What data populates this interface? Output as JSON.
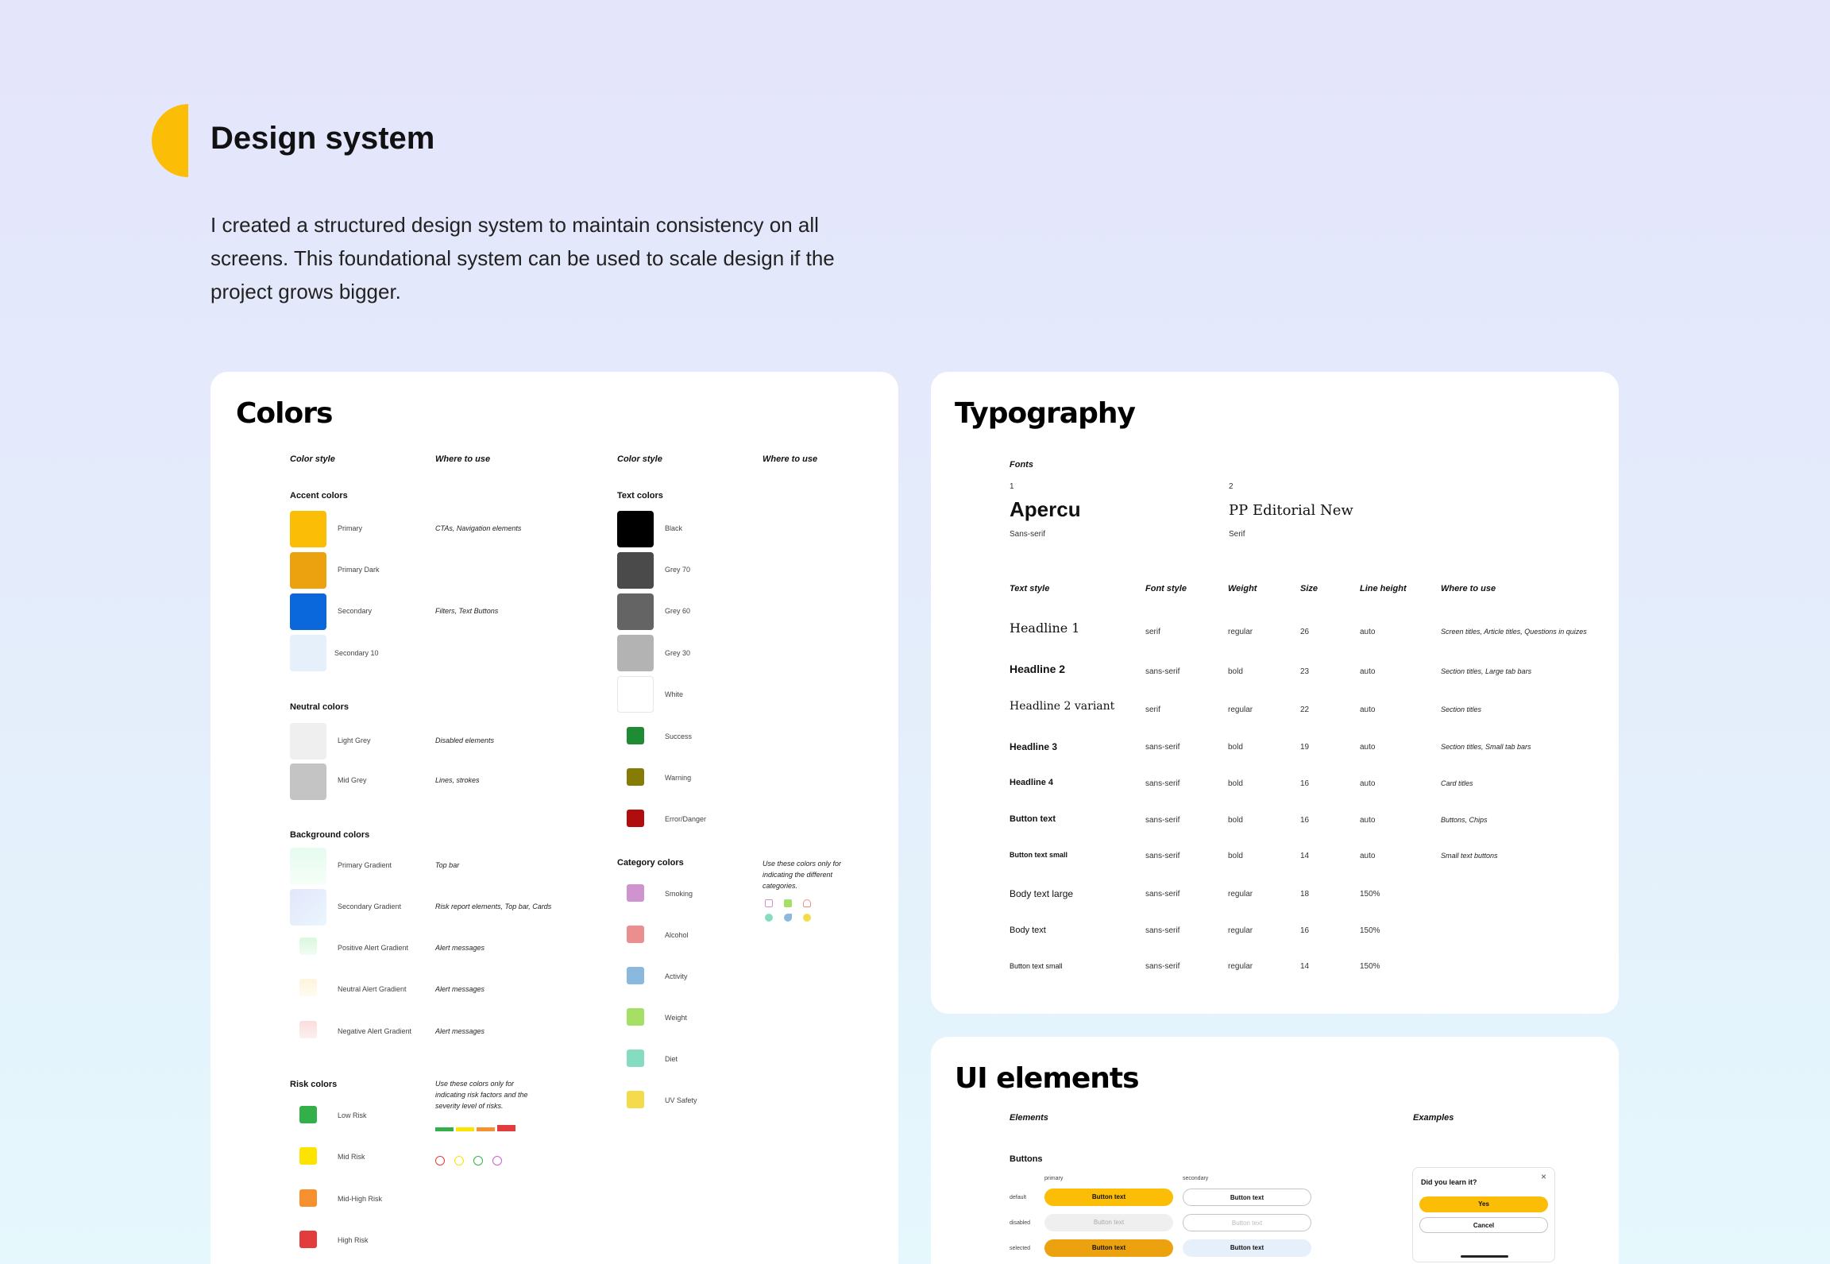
{
  "page": {
    "title": "Design system",
    "intro": "I created a structured design system to maintain consistency on all screens. This foundational system can be used to scale design if the project grows bigger.",
    "accent_color": "#fbbd06"
  },
  "colors": {
    "title": "Colors",
    "headers": {
      "color_style": "Color style",
      "where_to_use": "Where to use"
    },
    "accent": {
      "title": "Accent colors",
      "items": [
        {
          "name": "Primary",
          "hex": "#fbbd06",
          "use": "CTAs, Navigation elements"
        },
        {
          "name": "Primary Dark",
          "hex": "#eca20e",
          "use": ""
        },
        {
          "name": "Secondary",
          "hex": "#0a68dc",
          "use": "Filters, Text Buttons"
        },
        {
          "name": "Secondary 10",
          "hex": "#e6f0fb",
          "use": ""
        }
      ]
    },
    "neutral": {
      "title": "Neutral colors",
      "items": [
        {
          "name": "Light Grey",
          "hex": "#efefef",
          "use": "Disabled elements"
        },
        {
          "name": "Mid Grey",
          "hex": "#c4c4c4",
          "use": "Lines, strokes"
        }
      ]
    },
    "background": {
      "title": "Background colors",
      "items": [
        {
          "name": "Primary Gradient",
          "hex": "#e6fbef",
          "hex2": "#f5fff8",
          "use": "Top bar"
        },
        {
          "name": "Secondary Gradient",
          "hex": "#e3e6fb",
          "hex2": "#eaf6fd",
          "use": "Risk report elements, Top bar, Cards"
        },
        {
          "name": "Positive Alert Gradient",
          "hex": "#d9f7de",
          "hex2": "#f2fcf3",
          "use": "Alert messages"
        },
        {
          "name": "Neutral Alert Gradient",
          "hex": "#fdf5dc",
          "hex2": "#fffbf0",
          "use": "Alert messages"
        },
        {
          "name": "Negative Alert Gradient",
          "hex": "#fbdcdc",
          "hex2": "#fdf0f0",
          "use": "Alert messages"
        }
      ]
    },
    "risk": {
      "title": "Risk colors",
      "note": "Use these colors only for indicating risk factors and the severity level of risks.",
      "items": [
        {
          "name": "Low Risk",
          "hex": "#34b04b"
        },
        {
          "name": "Mid Risk",
          "hex": "#fde300"
        },
        {
          "name": "Mid-High Risk",
          "hex": "#f7902f"
        },
        {
          "name": "High Risk",
          "hex": "#e33c3c"
        }
      ]
    },
    "text": {
      "title": "Text colors",
      "items": [
        {
          "name": "Black",
          "hex": "#000000"
        },
        {
          "name": "Grey 70",
          "hex": "#4a4a4a"
        },
        {
          "name": "Grey 60",
          "hex": "#646464"
        },
        {
          "name": "Grey 30",
          "hex": "#b3b3b3"
        },
        {
          "name": "White",
          "hex": "#ffffff"
        },
        {
          "name": "Success",
          "hex": "#1e8b35"
        },
        {
          "name": "Warning",
          "hex": "#867b05"
        },
        {
          "name": "Error/Danger",
          "hex": "#b00e0e"
        }
      ]
    },
    "category": {
      "title": "Category colors",
      "note": "Use these colors only for indicating the different categories.",
      "items": [
        {
          "name": "Smoking",
          "hex": "#cf93cf"
        },
        {
          "name": "Alcohol",
          "hex": "#ed8e8e"
        },
        {
          "name": "Activity",
          "hex": "#8bb9de"
        },
        {
          "name": "Weight",
          "hex": "#a6df65"
        },
        {
          "name": "Diet",
          "hex": "#86dcc0"
        },
        {
          "name": "UV Safety",
          "hex": "#f3db4b"
        }
      ]
    }
  },
  "typography": {
    "title": "Typography",
    "fonts_label": "Fonts",
    "fonts": [
      {
        "number": "1",
        "name": "Apercu",
        "type": "Sans-serif"
      },
      {
        "number": "2",
        "name": "PP Editorial New",
        "type": "Serif"
      }
    ],
    "headers": [
      "Text style",
      "Font style",
      "Weight",
      "Size",
      "Line height",
      "Where to use"
    ],
    "rows": [
      {
        "style": "Headline 1",
        "font": "serif",
        "weight": "regular",
        "size": "26",
        "line": "auto",
        "use": "Screen titles, Article titles, Questions in quizes"
      },
      {
        "style": "Headline 2",
        "font": "sans-serif",
        "weight": "bold",
        "size": "23",
        "line": "auto",
        "use": "Section titles, Large tab bars"
      },
      {
        "style": "Headline 2 variant",
        "font": "serif",
        "weight": "regular",
        "size": "22",
        "line": "auto",
        "use": "Section titles"
      },
      {
        "style": "Headline 3",
        "font": "sans-serif",
        "weight": "bold",
        "size": "19",
        "line": "auto",
        "use": "Section titles, Small tab bars"
      },
      {
        "style": "Headline 4",
        "font": "sans-serif",
        "weight": "bold",
        "size": "16",
        "line": "auto",
        "use": "Card titles"
      },
      {
        "style": "Button text",
        "font": "sans-serif",
        "weight": "bold",
        "size": "16",
        "line": "auto",
        "use": "Buttons, Chips"
      },
      {
        "style": "Button text small",
        "font": "sans-serif",
        "weight": "bold",
        "size": "14",
        "line": "auto",
        "use": "Small text buttons"
      },
      {
        "style": "Body text large",
        "font": "sans-serif",
        "weight": "regular",
        "size": "18",
        "line": "150%",
        "use": ""
      },
      {
        "style": "Body text",
        "font": "sans-serif",
        "weight": "regular",
        "size": "16",
        "line": "150%",
        "use": ""
      },
      {
        "style": "Button text small",
        "font": "sans-serif",
        "weight": "regular",
        "size": "14",
        "line": "150%",
        "use": ""
      }
    ]
  },
  "ui": {
    "title": "UI elements",
    "elements_label": "Elements",
    "examples_label": "Examples",
    "buttons_label": "Buttons",
    "primary_label": "primary",
    "secondary_label": "secondary",
    "state_default": "default",
    "state_disabled": "disabled",
    "state_selected": "selected",
    "button_text": "Button text",
    "dialog": {
      "question": "Did you learn it?",
      "yes": "Yes",
      "cancel": "Cancel",
      "close": "×"
    }
  }
}
